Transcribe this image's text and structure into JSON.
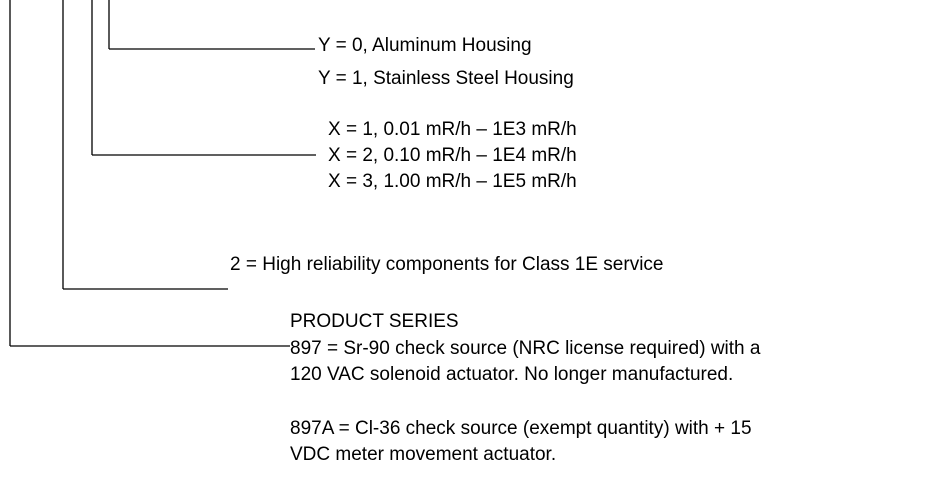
{
  "callouts": [
    {
      "lines": [
        "Y = 0, Aluminum Housing",
        "Y = 1, Stainless Steel Housing"
      ]
    },
    {
      "lines": [
        "X = 1, 0.01 mR/h – 1E3 mR/h",
        "X = 2, 0.10 mR/h – 1E4 mR/h",
        "X = 3, 1.00 mR/h – 1E5 mR/h"
      ]
    },
    {
      "lines": [
        "2 = High reliability components for Class 1E service"
      ]
    },
    {
      "lines": [
        "PRODUCT SERIES",
        "897 = Sr-90 check source (NRC license required) with a",
        "120 VAC solenoid actuator.  No longer manufactured.",
        "897A = Cl-36 check source (exempt quantity) with + 15",
        "VDC meter movement actuator."
      ]
    }
  ]
}
